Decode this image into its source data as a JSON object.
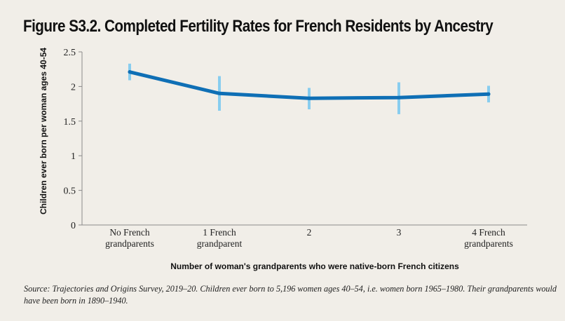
{
  "chart_data": {
    "type": "line",
    "title": "Figure S3.2. Completed Fertility Rates for French Residents by Ancestry",
    "xlabel": "Number of woman's grandparents who were native-born French citizens",
    "ylabel": "Children ever born per woman ages 40-54",
    "ylim": [
      0,
      2.5
    ],
    "yticks": [
      "0",
      "0.5",
      "1",
      "1.5",
      "2",
      "2.5"
    ],
    "categories": [
      [
        "No French",
        "grandparents"
      ],
      [
        "1 French",
        "grandparent"
      ],
      [
        "2"
      ],
      [
        "3"
      ],
      [
        "4 French",
        "grandparents"
      ]
    ],
    "series": [
      {
        "values": [
          2.21,
          1.9,
          1.83,
          1.84,
          1.89
        ],
        "error_low": [
          2.09,
          1.65,
          1.67,
          1.6,
          1.77
        ],
        "error_high": [
          2.33,
          2.15,
          1.98,
          2.06,
          2.01
        ]
      }
    ],
    "grid": false,
    "colors": {
      "line": "#0f6fb5",
      "error_bars": "#88cdef",
      "axis": "#8a8a8a"
    }
  },
  "source_note": "Source: Trajectories and Origins Survey, 2019–20. Children ever born to 5,196 women ages 40–54, i.e. women born 1965–1980. Their grandparents would have been born in 1890–1940."
}
